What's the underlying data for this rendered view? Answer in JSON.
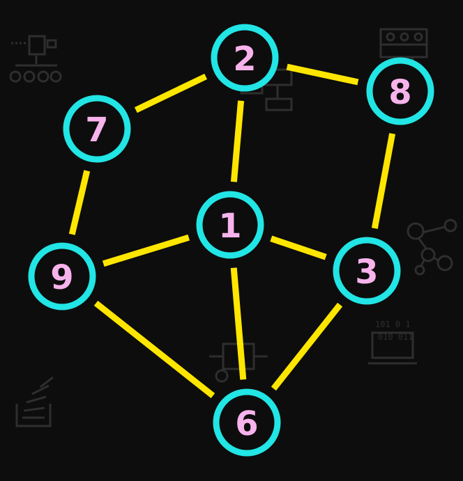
{
  "colors": {
    "background": "#0d0d0d",
    "edge": "#ffe600",
    "node_ring": "#22e5e5",
    "node_text": "#f7b3ec",
    "decoration": "#2e2e2e"
  },
  "nodes": [
    {
      "id": "n1",
      "label": "1"
    },
    {
      "id": "n2",
      "label": "2"
    },
    {
      "id": "n3",
      "label": "3"
    },
    {
      "id": "n6",
      "label": "6"
    },
    {
      "id": "n7",
      "label": "7"
    },
    {
      "id": "n8",
      "label": "8"
    },
    {
      "id": "n9",
      "label": "9"
    }
  ],
  "edges": [
    {
      "from": "2",
      "to": "7"
    },
    {
      "from": "2",
      "to": "8"
    },
    {
      "from": "2",
      "to": "1"
    },
    {
      "from": "7",
      "to": "9"
    },
    {
      "from": "8",
      "to": "3"
    },
    {
      "from": "1",
      "to": "9"
    },
    {
      "from": "1",
      "to": "3"
    },
    {
      "from": "1",
      "to": "6"
    },
    {
      "from": "9",
      "to": "6"
    },
    {
      "from": "3",
      "to": "6"
    }
  ],
  "background_icons": [
    "flowchart-icon",
    "org-chart-icon",
    "server-rack-icon",
    "network-graph-icon",
    "binary-laptop-icon",
    "robot-circuit-icon",
    "stack-overflow-icon"
  ]
}
